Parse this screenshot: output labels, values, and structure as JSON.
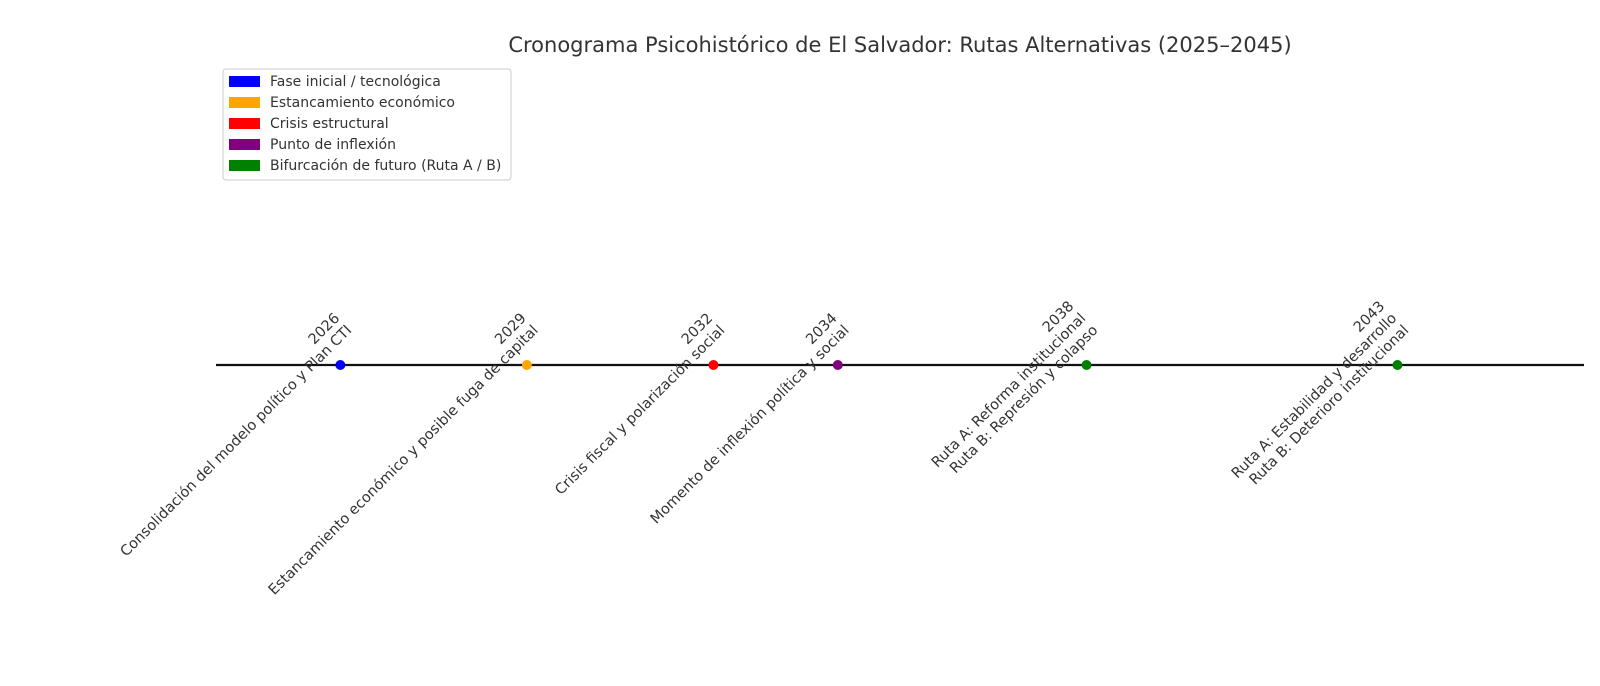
{
  "chart_data": {
    "type": "scatter",
    "title": "Cronograma Psicohistórico de El Salvador: Rutas Alternativas (2025–2045)",
    "xlabel": "",
    "ylabel": "",
    "xlim": [
      2024,
      2046
    ],
    "grid": false,
    "legend_position": "upper-left",
    "legend": [
      {
        "label": "Fase inicial / tecnológica",
        "color": "#0000ff"
      },
      {
        "label": "Estancamiento económico",
        "color": "#ffa500"
      },
      {
        "label": "Crisis estructural",
        "color": "#ff0000"
      },
      {
        "label": "Punto de inflexión",
        "color": "#800080"
      },
      {
        "label": "Bifurcación de futuro (Ruta A / B)",
        "color": "#008000"
      }
    ],
    "events": [
      {
        "year": 2026,
        "year_label": "2026",
        "lines": [
          "Consolidación del modelo político y Plan CTI"
        ],
        "color": "#0000ff"
      },
      {
        "year": 2029,
        "year_label": "2029",
        "lines": [
          "Estancamiento económico y posible fuga de capital"
        ],
        "color": "#ffa500"
      },
      {
        "year": 2032,
        "year_label": "2032",
        "lines": [
          "Crisis fiscal y polarización social"
        ],
        "color": "#ff0000"
      },
      {
        "year": 2034,
        "year_label": "2034",
        "lines": [
          "Momento de inflexión política y social"
        ],
        "color": "#800080"
      },
      {
        "year": 2038,
        "year_label": "2038",
        "lines": [
          "Ruta A: Reforma institucional",
          "Ruta B: Represión y colapso"
        ],
        "color": "#008000"
      },
      {
        "year": 2043,
        "year_label": "2043",
        "lines": [
          "Ruta A: Estabilidad y desarrollo",
          "Ruta B: Deterioro institucional"
        ],
        "color": "#008000"
      }
    ]
  }
}
